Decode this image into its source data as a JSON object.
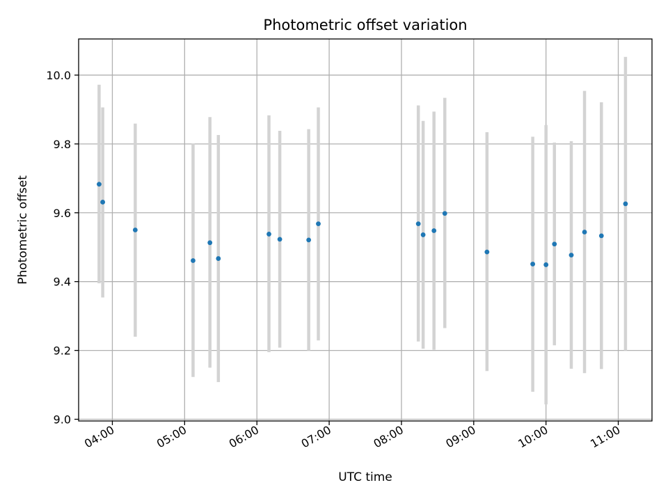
{
  "chart_data": {
    "type": "scatter",
    "title": "Photometric offset variation",
    "xlabel": "UTC time",
    "ylabel": "Photometric offset",
    "x_axis_type": "time",
    "xlim": [
      "03:32",
      "11:28"
    ],
    "ylim": [
      8.995,
      10.105
    ],
    "x_ticks": [
      "04:00",
      "05:00",
      "06:00",
      "07:00",
      "08:00",
      "09:00",
      "10:00",
      "11:00"
    ],
    "y_ticks": [
      9.0,
      9.2,
      9.4,
      9.6,
      9.8,
      10.0
    ],
    "y_tick_labels": [
      "9.0",
      "9.2",
      "9.4",
      "9.6",
      "9.8",
      "10.0"
    ],
    "grid": true,
    "point_color": "#1f77b4",
    "errorbar_color": "#d3d3d3",
    "points": [
      {
        "x": "03:49",
        "y": 9.683,
        "ymin": 9.395,
        "ymax": 9.972
      },
      {
        "x": "03:52",
        "y": 9.631,
        "ymin": 9.354,
        "ymax": 9.906
      },
      {
        "x": "04:19",
        "y": 9.55,
        "ymin": 9.24,
        "ymax": 9.859
      },
      {
        "x": "05:07",
        "y": 9.461,
        "ymin": 9.123,
        "ymax": 9.801
      },
      {
        "x": "05:21",
        "y": 9.513,
        "ymin": 9.15,
        "ymax": 9.878
      },
      {
        "x": "05:28",
        "y": 9.467,
        "ymin": 9.108,
        "ymax": 9.826
      },
      {
        "x": "06:10",
        "y": 9.538,
        "ymin": 9.195,
        "ymax": 9.883
      },
      {
        "x": "06:19",
        "y": 9.523,
        "ymin": 9.208,
        "ymax": 9.838
      },
      {
        "x": "06:43",
        "y": 9.521,
        "ymin": 9.2,
        "ymax": 9.843
      },
      {
        "x": "06:51",
        "y": 9.568,
        "ymin": 9.229,
        "ymax": 9.906
      },
      {
        "x": "08:14",
        "y": 9.568,
        "ymin": 9.226,
        "ymax": 9.912
      },
      {
        "x": "08:18",
        "y": 9.536,
        "ymin": 9.205,
        "ymax": 9.867
      },
      {
        "x": "08:27",
        "y": 9.548,
        "ymin": 9.202,
        "ymax": 9.894
      },
      {
        "x": "08:36",
        "y": 9.598,
        "ymin": 9.265,
        "ymax": 9.934
      },
      {
        "x": "09:11",
        "y": 9.486,
        "ymin": 9.14,
        "ymax": 9.834
      },
      {
        "x": "09:49",
        "y": 9.451,
        "ymin": 9.08,
        "ymax": 9.821
      },
      {
        "x": "10:00",
        "y": 9.449,
        "ymin": 9.043,
        "ymax": 9.855
      },
      {
        "x": "10:07",
        "y": 9.509,
        "ymin": 9.215,
        "ymax": 9.804
      },
      {
        "x": "10:21",
        "y": 9.477,
        "ymin": 9.147,
        "ymax": 9.808
      },
      {
        "x": "10:32",
        "y": 9.544,
        "ymin": 9.134,
        "ymax": 9.954
      },
      {
        "x": "10:46",
        "y": 9.533,
        "ymin": 9.146,
        "ymax": 9.921
      },
      {
        "x": "11:06",
        "y": 9.626,
        "ymin": 9.2,
        "ymax": 10.053
      }
    ]
  }
}
